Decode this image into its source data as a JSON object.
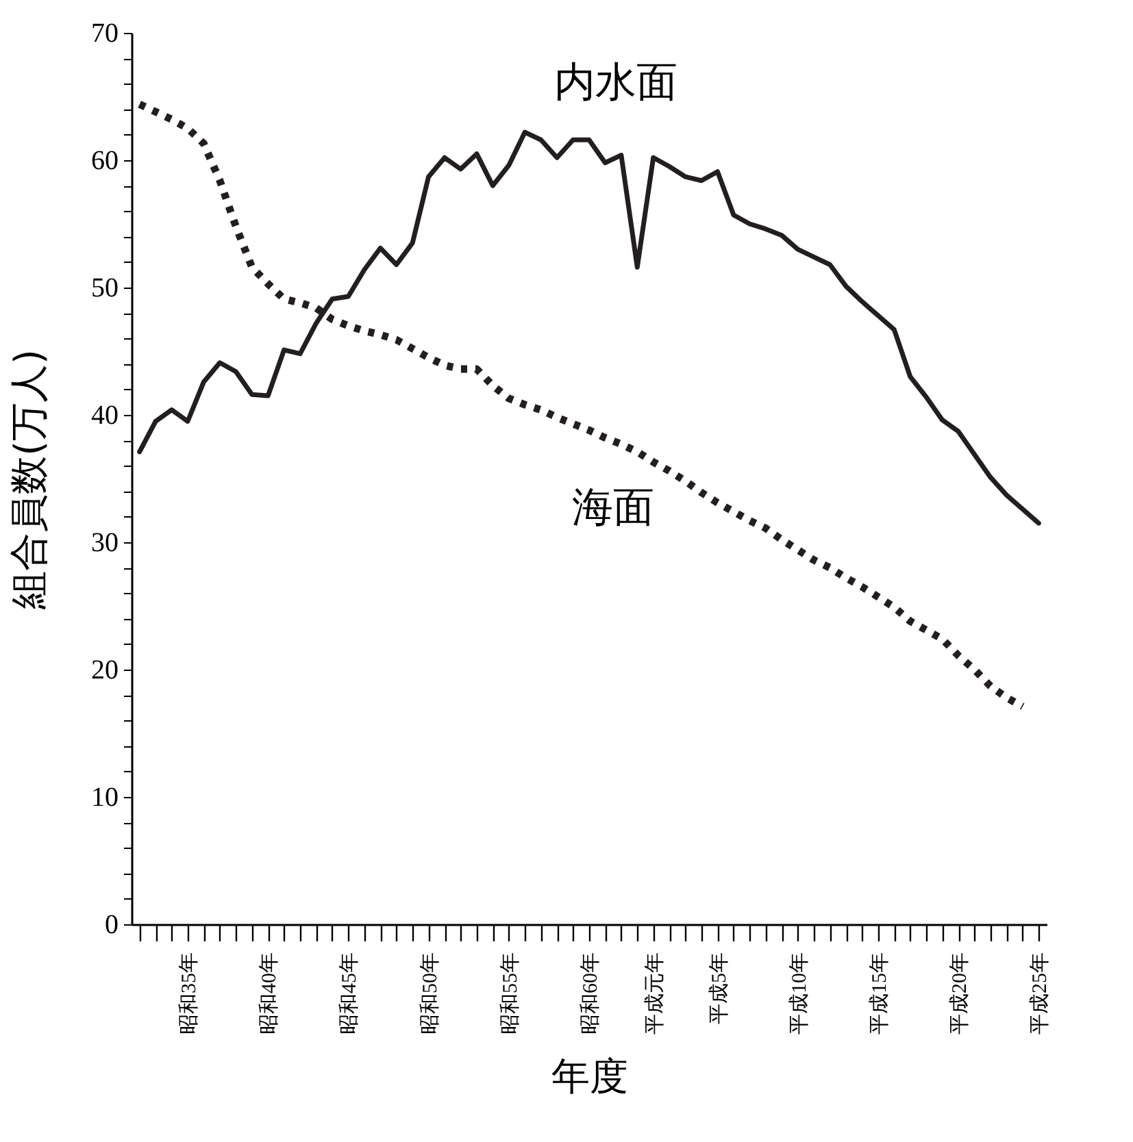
{
  "chart_data": {
    "type": "line",
    "xlabel": "年度",
    "ylabel": "組合員数(万人)",
    "categories": [
      null,
      null,
      null,
      "昭和35年",
      null,
      null,
      null,
      null,
      "昭和40年",
      null,
      null,
      null,
      null,
      "昭和45年",
      null,
      null,
      null,
      null,
      "昭和50年",
      null,
      null,
      null,
      null,
      "昭和55年",
      null,
      null,
      null,
      null,
      "昭和60年",
      null,
      null,
      null,
      "平成元年",
      null,
      null,
      null,
      "平成5年",
      null,
      null,
      null,
      null,
      "平成10年",
      null,
      null,
      null,
      null,
      "平成15年",
      null,
      null,
      null,
      null,
      "平成20年",
      null,
      null,
      null,
      null,
      "平成25年"
    ],
    "ylim": [
      0,
      70
    ],
    "yticks": [
      0,
      {
        "value": 2,
        "label": null
      },
      {
        "value": 4,
        "label": null
      },
      {
        "value": 6,
        "label": null
      },
      {
        "value": 8,
        "label": null
      },
      10,
      {
        "value": 12,
        "label": null
      },
      {
        "value": 14,
        "label": null
      },
      {
        "value": 16,
        "label": null
      },
      {
        "value": 18,
        "label": null
      },
      20,
      {
        "value": 22,
        "label": null
      },
      {
        "value": 24,
        "label": null
      },
      {
        "value": 26,
        "label": null
      },
      {
        "value": 28,
        "label": null
      },
      30,
      {
        "value": 32,
        "label": null
      },
      {
        "value": 34,
        "label": null
      },
      {
        "value": 36,
        "label": null
      },
      {
        "value": 38,
        "label": null
      },
      40,
      {
        "value": 42,
        "label": null
      },
      {
        "value": 44,
        "label": null
      },
      {
        "value": 46,
        "label": null
      },
      {
        "value": 48,
        "label": null
      },
      50,
      {
        "value": 52,
        "label": null
      },
      {
        "value": 54,
        "label": null
      },
      {
        "value": 56,
        "label": null
      },
      {
        "value": 58,
        "label": null
      },
      60,
      {
        "value": 62,
        "label": null
      },
      {
        "value": 64,
        "label": null
      },
      {
        "value": 66,
        "label": null
      },
      {
        "value": 68,
        "label": null
      },
      70
    ],
    "grid": false,
    "legend": false,
    "marker": "none",
    "series": [
      {
        "name": "内水面",
        "color": "#231f20",
        "line_style": "solid",
        "values": [
          37.1,
          39.5,
          40.4,
          39.5,
          42.6,
          44.1,
          43.4,
          41.6,
          41.5,
          45.1,
          44.8,
          47.2,
          49.1,
          49.3,
          51.4,
          53.1,
          51.8,
          53.5,
          58.7,
          60.2,
          59.3,
          60.5,
          58.0,
          59.6,
          62.2,
          61.6,
          60.2,
          61.6,
          61.6,
          59.8,
          60.4,
          51.6,
          60.2,
          59.5,
          58.7,
          58.4,
          59.1,
          55.7,
          55.0,
          54.6,
          54.1,
          53.0,
          52.4,
          51.8,
          50.1,
          48.9,
          47.8,
          46.7,
          43.0,
          41.4,
          39.6,
          38.7,
          36.9,
          35.1,
          33.7,
          32.6,
          31.5
        ]
      },
      {
        "name": "海面",
        "color": "#231f20",
        "line_style": "dotted",
        "values": [
          64.4,
          63.8,
          63.2,
          62.5,
          61.3,
          58.4,
          54.8,
          51.6,
          50.3,
          49.1,
          48.8,
          48.4,
          47.5,
          47.0,
          46.6,
          46.3,
          45.9,
          45.2,
          44.5,
          43.9,
          43.6,
          43.6,
          42.3,
          41.3,
          40.8,
          40.4,
          39.8,
          39.3,
          38.8,
          38.2,
          37.7,
          37.1,
          36.3,
          35.6,
          34.8,
          33.9,
          33.1,
          32.4,
          31.7,
          31.1,
          30.2,
          29.4,
          28.6,
          28.0,
          27.2,
          26.5,
          25.7,
          24.9,
          23.8,
          23.1,
          22.4,
          21.1,
          20.0,
          18.7,
          17.8,
          17.1,
          null
        ]
      }
    ]
  }
}
